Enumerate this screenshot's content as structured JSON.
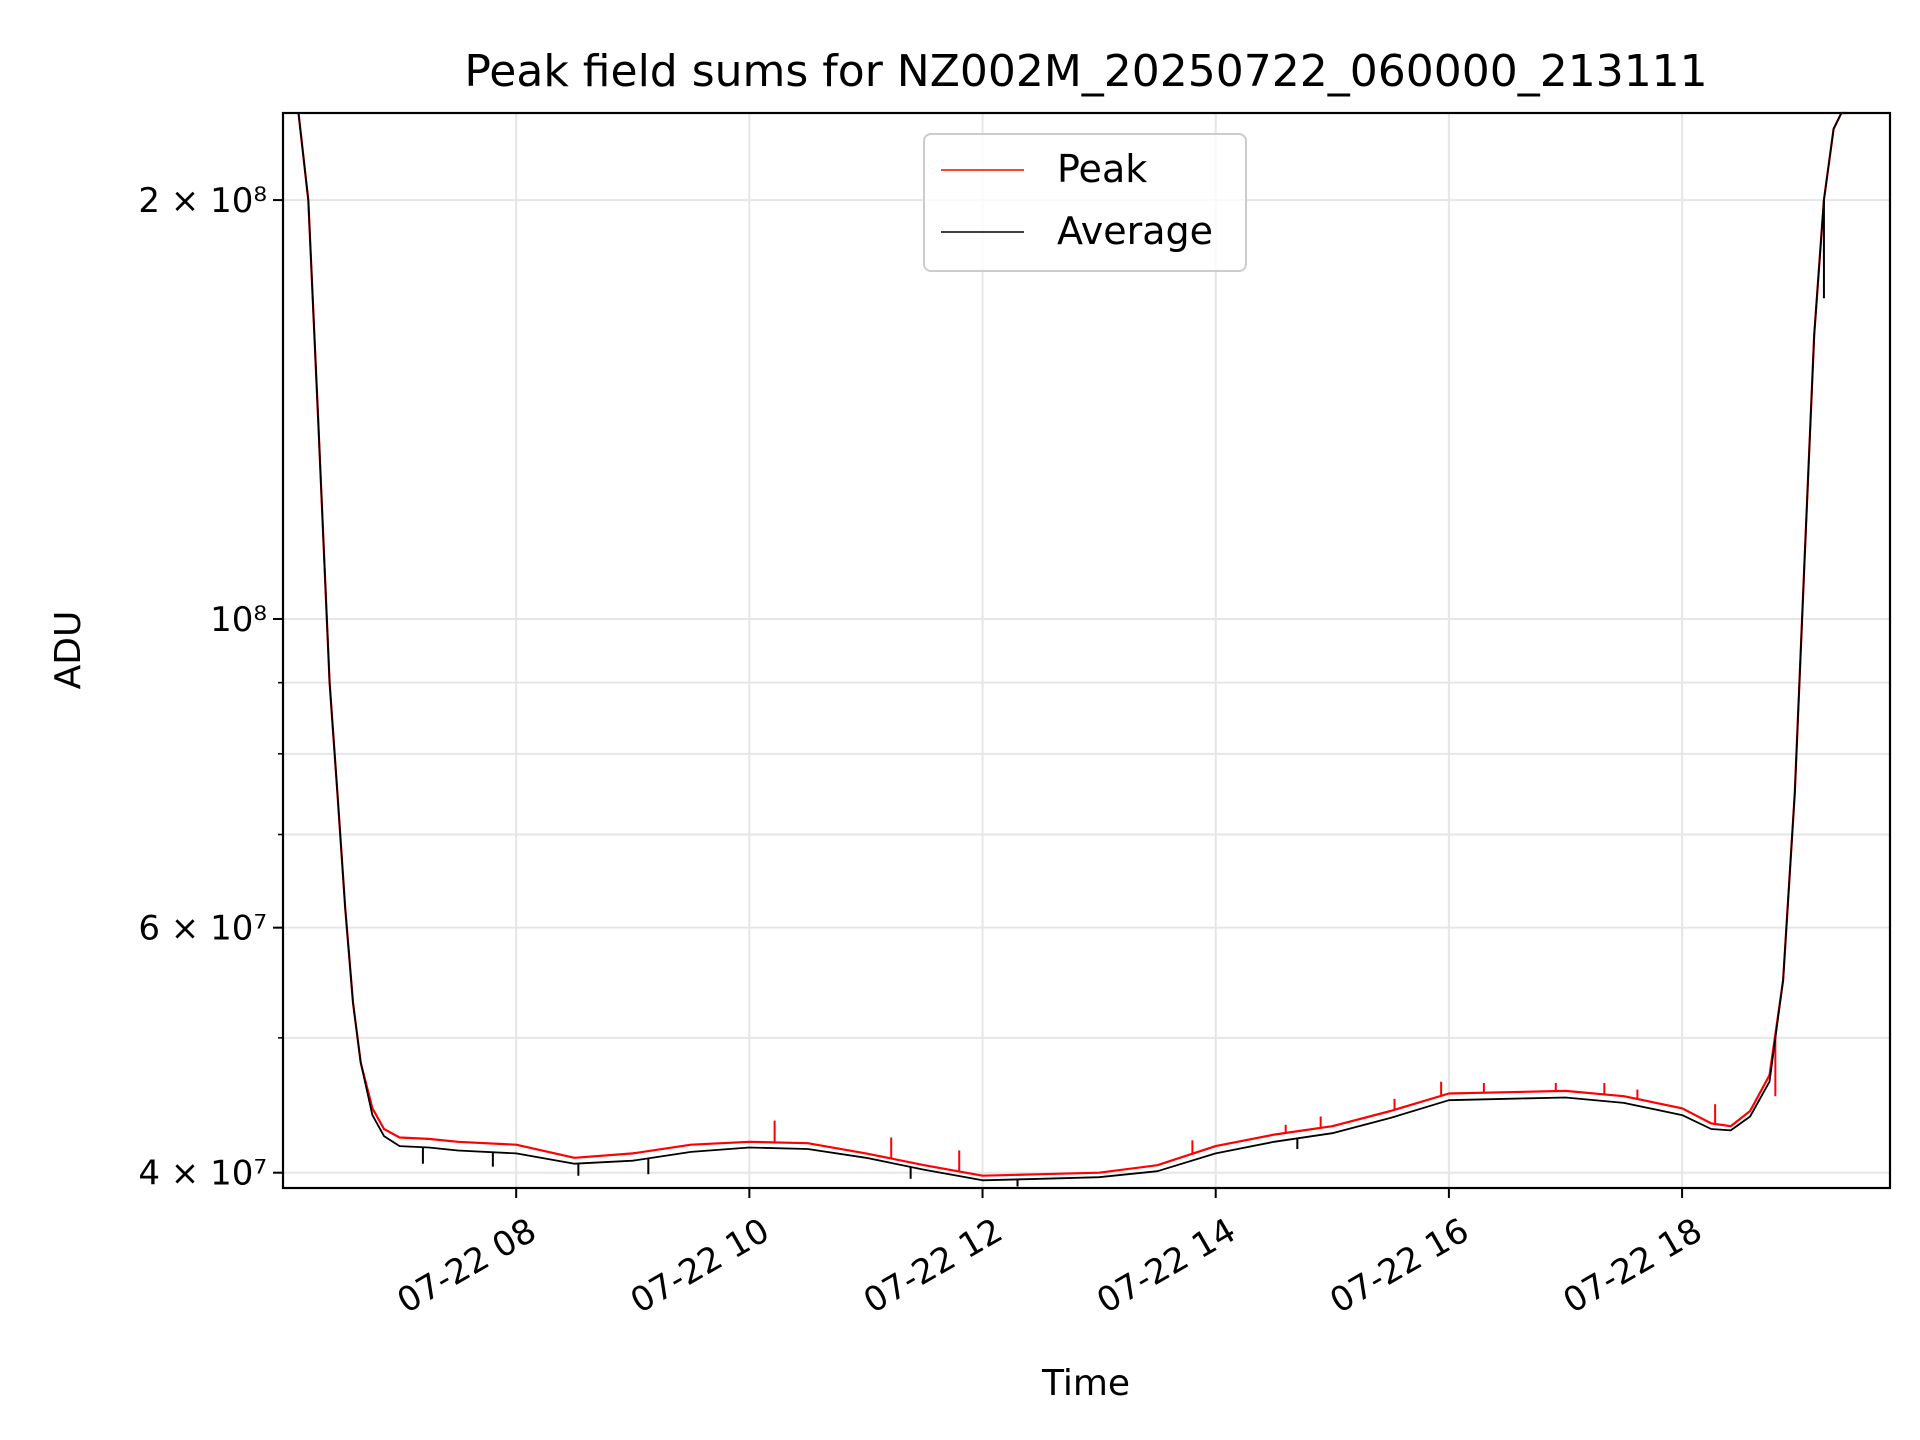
{
  "chart_data": {
    "type": "line",
    "title": "Peak field sums for NZ002M_20250722_060000_213111",
    "xlabel": "Time",
    "ylabel": "ADU",
    "x_scale": "time",
    "y_scale": "log",
    "xlim": [
      "2025-07-22 06:00",
      "2025-07-22 19:47"
    ],
    "ylim": [
      39000000,
      231000000
    ],
    "x_ticks": [
      {
        "value": "2025-07-22 08:00",
        "label": "07-22 08"
      },
      {
        "value": "2025-07-22 10:00",
        "label": "07-22 10"
      },
      {
        "value": "2025-07-22 12:00",
        "label": "07-22 12"
      },
      {
        "value": "2025-07-22 14:00",
        "label": "07-22 14"
      },
      {
        "value": "2025-07-22 16:00",
        "label": "07-22 16"
      },
      {
        "value": "2025-07-22 18:00",
        "label": "07-22 18"
      }
    ],
    "y_ticks": [
      {
        "value": 40000000,
        "label": "4 × 10⁷"
      },
      {
        "value": 60000000,
        "label": "6 × 10⁷"
      },
      {
        "value": 100000000,
        "label": "10⁸"
      },
      {
        "value": 200000000,
        "label": "2 × 10⁸"
      }
    ],
    "y_minor_ticks": [
      50000000,
      70000000,
      80000000,
      90000000
    ],
    "grid": true,
    "legend": {
      "position": "upper center",
      "entries": [
        "Peak",
        "Average"
      ]
    },
    "series": [
      {
        "name": "Peak",
        "color": "#ff0000",
        "x": [
          "2025-07-22 06:08",
          "2025-07-22 06:13",
          "2025-07-22 06:18",
          "2025-07-22 06:24",
          "2025-07-22 06:28",
          "2025-07-22 06:32",
          "2025-07-22 06:36",
          "2025-07-22 06:40",
          "2025-07-22 06:46",
          "2025-07-22 06:52",
          "2025-07-22 07:00",
          "2025-07-22 07:15",
          "2025-07-22 07:30",
          "2025-07-22 08:00",
          "2025-07-22 08:30",
          "2025-07-22 09:00",
          "2025-07-22 09:30",
          "2025-07-22 10:00",
          "2025-07-22 10:30",
          "2025-07-22 11:00",
          "2025-07-22 11:30",
          "2025-07-22 12:00",
          "2025-07-22 12:30",
          "2025-07-22 13:00",
          "2025-07-22 13:30",
          "2025-07-22 14:00",
          "2025-07-22 14:30",
          "2025-07-22 15:00",
          "2025-07-22 15:30",
          "2025-07-22 16:00",
          "2025-07-22 16:30",
          "2025-07-22 17:00",
          "2025-07-22 17:30",
          "2025-07-22 18:00",
          "2025-07-22 18:15",
          "2025-07-22 18:25",
          "2025-07-22 18:35",
          "2025-07-22 18:45",
          "2025-07-22 18:52",
          "2025-07-22 18:58",
          "2025-07-22 19:03",
          "2025-07-22 19:08",
          "2025-07-22 19:13",
          "2025-07-22 19:18",
          "2025-07-22 19:22",
          "2025-07-22 19:25"
        ],
        "y": [
          231000000,
          200000000,
          140000000,
          90000000,
          75000000,
          62000000,
          53000000,
          48000000,
          44500000,
          43000000,
          42400000,
          42300000,
          42100000,
          41900000,
          41000000,
          41300000,
          41900000,
          42100000,
          42000000,
          41300000,
          40500000,
          39800000,
          39900000,
          40000000,
          40500000,
          41800000,
          42600000,
          43200000,
          44300000,
          45600000,
          45700000,
          45800000,
          45400000,
          44500000,
          43400000,
          43200000,
          44300000,
          47000000,
          55000000,
          75000000,
          110000000,
          160000000,
          200000000,
          225000000,
          231000000,
          231000000
        ],
        "spikes": [
          {
            "x": "2025-07-22 10:13",
            "y": 43600000
          },
          {
            "x": "2025-07-22 11:13",
            "y": 42400000
          },
          {
            "x": "2025-07-22 11:48",
            "y": 41500000
          },
          {
            "x": "2025-07-22 13:48",
            "y": 42200000
          },
          {
            "x": "2025-07-22 14:36",
            "y": 43300000
          },
          {
            "x": "2025-07-22 14:54",
            "y": 43900000
          },
          {
            "x": "2025-07-22 15:32",
            "y": 45200000
          },
          {
            "x": "2025-07-22 15:56",
            "y": 46500000
          },
          {
            "x": "2025-07-22 16:18",
            "y": 46400000
          },
          {
            "x": "2025-07-22 16:55",
            "y": 46400000
          },
          {
            "x": "2025-07-22 17:20",
            "y": 46400000
          },
          {
            "x": "2025-07-22 17:37",
            "y": 45900000
          },
          {
            "x": "2025-07-22 18:17",
            "y": 44800000
          },
          {
            "x": "2025-07-22 18:48",
            "y": 45400000
          }
        ]
      },
      {
        "name": "Average",
        "color": "#000000",
        "x": [
          "2025-07-22 06:08",
          "2025-07-22 06:13",
          "2025-07-22 06:18",
          "2025-07-22 06:24",
          "2025-07-22 06:28",
          "2025-07-22 06:32",
          "2025-07-22 06:36",
          "2025-07-22 06:40",
          "2025-07-22 06:46",
          "2025-07-22 06:52",
          "2025-07-22 07:00",
          "2025-07-22 07:15",
          "2025-07-22 07:30",
          "2025-07-22 08:00",
          "2025-07-22 08:30",
          "2025-07-22 09:00",
          "2025-07-22 09:30",
          "2025-07-22 10:00",
          "2025-07-22 10:30",
          "2025-07-22 11:00",
          "2025-07-22 11:30",
          "2025-07-22 12:00",
          "2025-07-22 12:30",
          "2025-07-22 13:00",
          "2025-07-22 13:30",
          "2025-07-22 14:00",
          "2025-07-22 14:30",
          "2025-07-22 15:00",
          "2025-07-22 15:30",
          "2025-07-22 16:00",
          "2025-07-22 16:30",
          "2025-07-22 17:00",
          "2025-07-22 17:30",
          "2025-07-22 18:00",
          "2025-07-22 18:15",
          "2025-07-22 18:25",
          "2025-07-22 18:35",
          "2025-07-22 18:45",
          "2025-07-22 18:52",
          "2025-07-22 18:58",
          "2025-07-22 19:03",
          "2025-07-22 19:08",
          "2025-07-22 19:13",
          "2025-07-22 19:18",
          "2025-07-22 19:22",
          "2025-07-22 19:25"
        ],
        "y": [
          231000000,
          200000000,
          140000000,
          90000000,
          75000000,
          62000000,
          53000000,
          48000000,
          44000000,
          42500000,
          41800000,
          41700000,
          41500000,
          41300000,
          40600000,
          40800000,
          41400000,
          41700000,
          41600000,
          41000000,
          40200000,
          39500000,
          39600000,
          39700000,
          40100000,
          41300000,
          42100000,
          42700000,
          43800000,
          45100000,
          45200000,
          45300000,
          44900000,
          44000000,
          43000000,
          42900000,
          43900000,
          46500000,
          55000000,
          75000000,
          110000000,
          160000000,
          200000000,
          225000000,
          231000000,
          231000000
        ],
        "spikes": [
          {
            "x": "2025-07-22 07:12",
            "y": 40600000
          },
          {
            "x": "2025-07-22 07:48",
            "y": 40400000
          },
          {
            "x": "2025-07-22 08:32",
            "y": 39800000
          },
          {
            "x": "2025-07-22 09:08",
            "y": 39900000
          },
          {
            "x": "2025-07-22 11:23",
            "y": 39600000
          },
          {
            "x": "2025-07-22 12:18",
            "y": 39100000
          },
          {
            "x": "2025-07-22 14:42",
            "y": 41600000
          },
          {
            "x": "2025-07-22 19:13",
            "y": 170000000
          }
        ]
      }
    ]
  }
}
